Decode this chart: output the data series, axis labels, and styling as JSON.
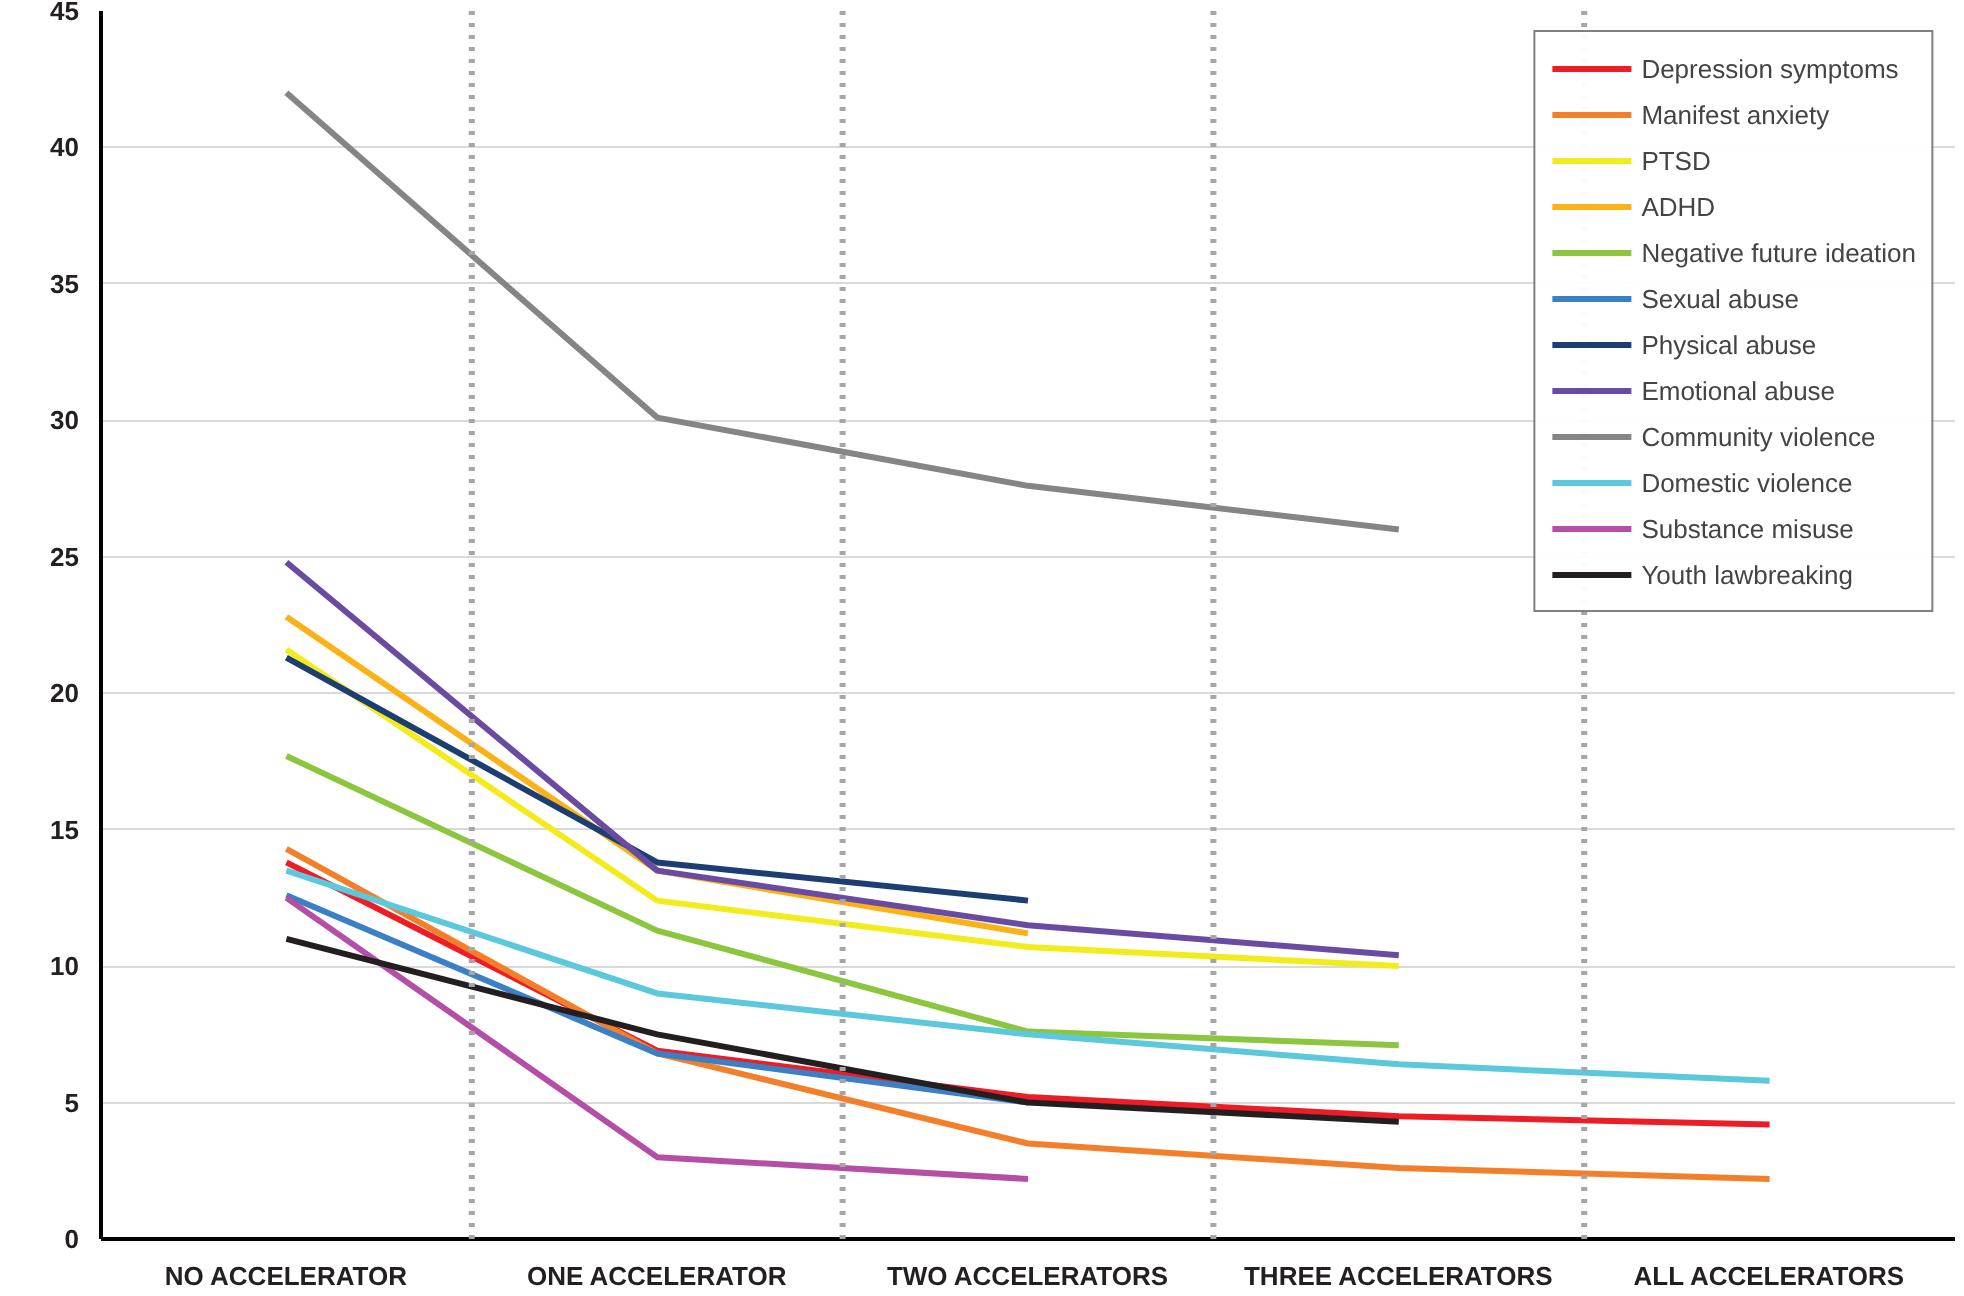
{
  "chart_data": {
    "type": "line",
    "categories": [
      "NO ACCELERATOR",
      "ONE ACCELERATOR",
      "TWO ACCELERATORS",
      "THREE ACCELERATORS",
      "ALL ACCELERATORS"
    ],
    "ylim": [
      0,
      45
    ],
    "yticks": [
      0,
      5,
      10,
      15,
      20,
      25,
      30,
      35,
      40,
      45
    ],
    "grid": "y",
    "legend": "top right",
    "marker": "none",
    "line_style": "solid",
    "series": [
      {
        "name": "Depression symptoms",
        "color": "#ee1c25",
        "values": [
          13.8,
          6.9,
          5.2,
          4.5,
          4.2
        ]
      },
      {
        "name": "Manifest anxiety",
        "color": "#f47f2a",
        "values": [
          14.3,
          6.8,
          3.5,
          2.6,
          2.2
        ]
      },
      {
        "name": "PTSD",
        "color": "#f2ec1c",
        "values": [
          21.6,
          12.4,
          10.7,
          10.0,
          null
        ]
      },
      {
        "name": "ADHD",
        "color": "#fbb217",
        "values": [
          22.8,
          13.5,
          11.2,
          null,
          null
        ]
      },
      {
        "name": "Negative future ideation",
        "color": "#8cc63f",
        "values": [
          17.7,
          11.3,
          7.6,
          7.1,
          null
        ]
      },
      {
        "name": "Sexual abuse",
        "color": "#3b7fc4",
        "values": [
          12.6,
          6.8,
          5.0,
          null,
          null
        ]
      },
      {
        "name": "Physical abuse",
        "color": "#1d3e72",
        "values": [
          21.3,
          13.8,
          12.4,
          null,
          null
        ]
      },
      {
        "name": "Emotional abuse",
        "color": "#6a4ba2",
        "values": [
          24.8,
          13.5,
          11.5,
          10.4,
          null
        ]
      },
      {
        "name": "Community violence",
        "color": "#858585",
        "values": [
          42.0,
          30.1,
          27.6,
          26.0,
          null
        ]
      },
      {
        "name": "Domestic violence",
        "color": "#5bc8dc",
        "values": [
          13.5,
          9.0,
          7.5,
          6.4,
          5.8
        ]
      },
      {
        "name": "Substance misuse",
        "color": "#b44fa5",
        "values": [
          12.5,
          3.0,
          2.2,
          null,
          null
        ]
      },
      {
        "name": "Youth lawbreaking",
        "color": "#231f20",
        "values": [
          11.0,
          7.5,
          5.0,
          4.3,
          null
        ]
      }
    ]
  }
}
